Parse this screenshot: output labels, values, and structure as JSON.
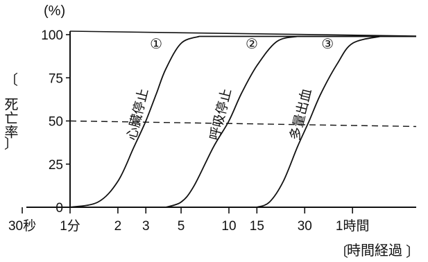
{
  "chart_data": {
    "type": "line",
    "title": "",
    "ylabel": "死亡率",
    "xlabel": "時間経過",
    "y_unit": "(%)",
    "ylim": [
      0,
      100
    ],
    "yticks": [
      "0",
      "25",
      "50",
      "75",
      "100"
    ],
    "x_scale": "log",
    "x_unit": "minutes",
    "x_range_minutes": [
      0.5,
      90
    ],
    "xticks": [
      {
        "label": "30秒",
        "minutes": 0.5
      },
      {
        "label": "1分",
        "minutes": 1
      },
      {
        "label": "2",
        "minutes": 2
      },
      {
        "label": "3",
        "minutes": 3
      },
      {
        "label": "5",
        "minutes": 5
      },
      {
        "label": "10",
        "minutes": 10
      },
      {
        "label": "15",
        "minutes": 15
      },
      {
        "label": "30",
        "minutes": 30
      },
      {
        "label": "1時間",
        "minutes": 60
      }
    ],
    "reference_line": {
      "y": 50,
      "style": "dashed"
    },
    "series": [
      {
        "marker": "①",
        "name": "心臓停止",
        "points": [
          {
            "x": 1,
            "y": 0
          },
          {
            "x": 1.5,
            "y": 3
          },
          {
            "x": 2,
            "y": 15
          },
          {
            "x": 2.5,
            "y": 34
          },
          {
            "x": 3,
            "y": 50
          },
          {
            "x": 3.5,
            "y": 66
          },
          {
            "x": 4,
            "y": 80
          },
          {
            "x": 5,
            "y": 95
          },
          {
            "x": 6.5,
            "y": 99
          }
        ]
      },
      {
        "marker": "②",
        "name": "呼吸停止",
        "points": [
          {
            "x": 4,
            "y": 0
          },
          {
            "x": 5,
            "y": 3
          },
          {
            "x": 6,
            "y": 12
          },
          {
            "x": 8,
            "y": 35
          },
          {
            "x": 10,
            "y": 50
          },
          {
            "x": 12,
            "y": 66
          },
          {
            "x": 15,
            "y": 82
          },
          {
            "x": 20,
            "y": 96
          },
          {
            "x": 27,
            "y": 99
          }
        ]
      },
      {
        "marker": "③",
        "name": "多量出血",
        "points": [
          {
            "x": 15,
            "y": 0
          },
          {
            "x": 18,
            "y": 3
          },
          {
            "x": 22,
            "y": 15
          },
          {
            "x": 27,
            "y": 35
          },
          {
            "x": 32,
            "y": 50
          },
          {
            "x": 38,
            "y": 66
          },
          {
            "x": 48,
            "y": 83
          },
          {
            "x": 60,
            "y": 95
          },
          {
            "x": 90,
            "y": 99
          }
        ]
      }
    ],
    "grid": false,
    "legend": "none"
  }
}
